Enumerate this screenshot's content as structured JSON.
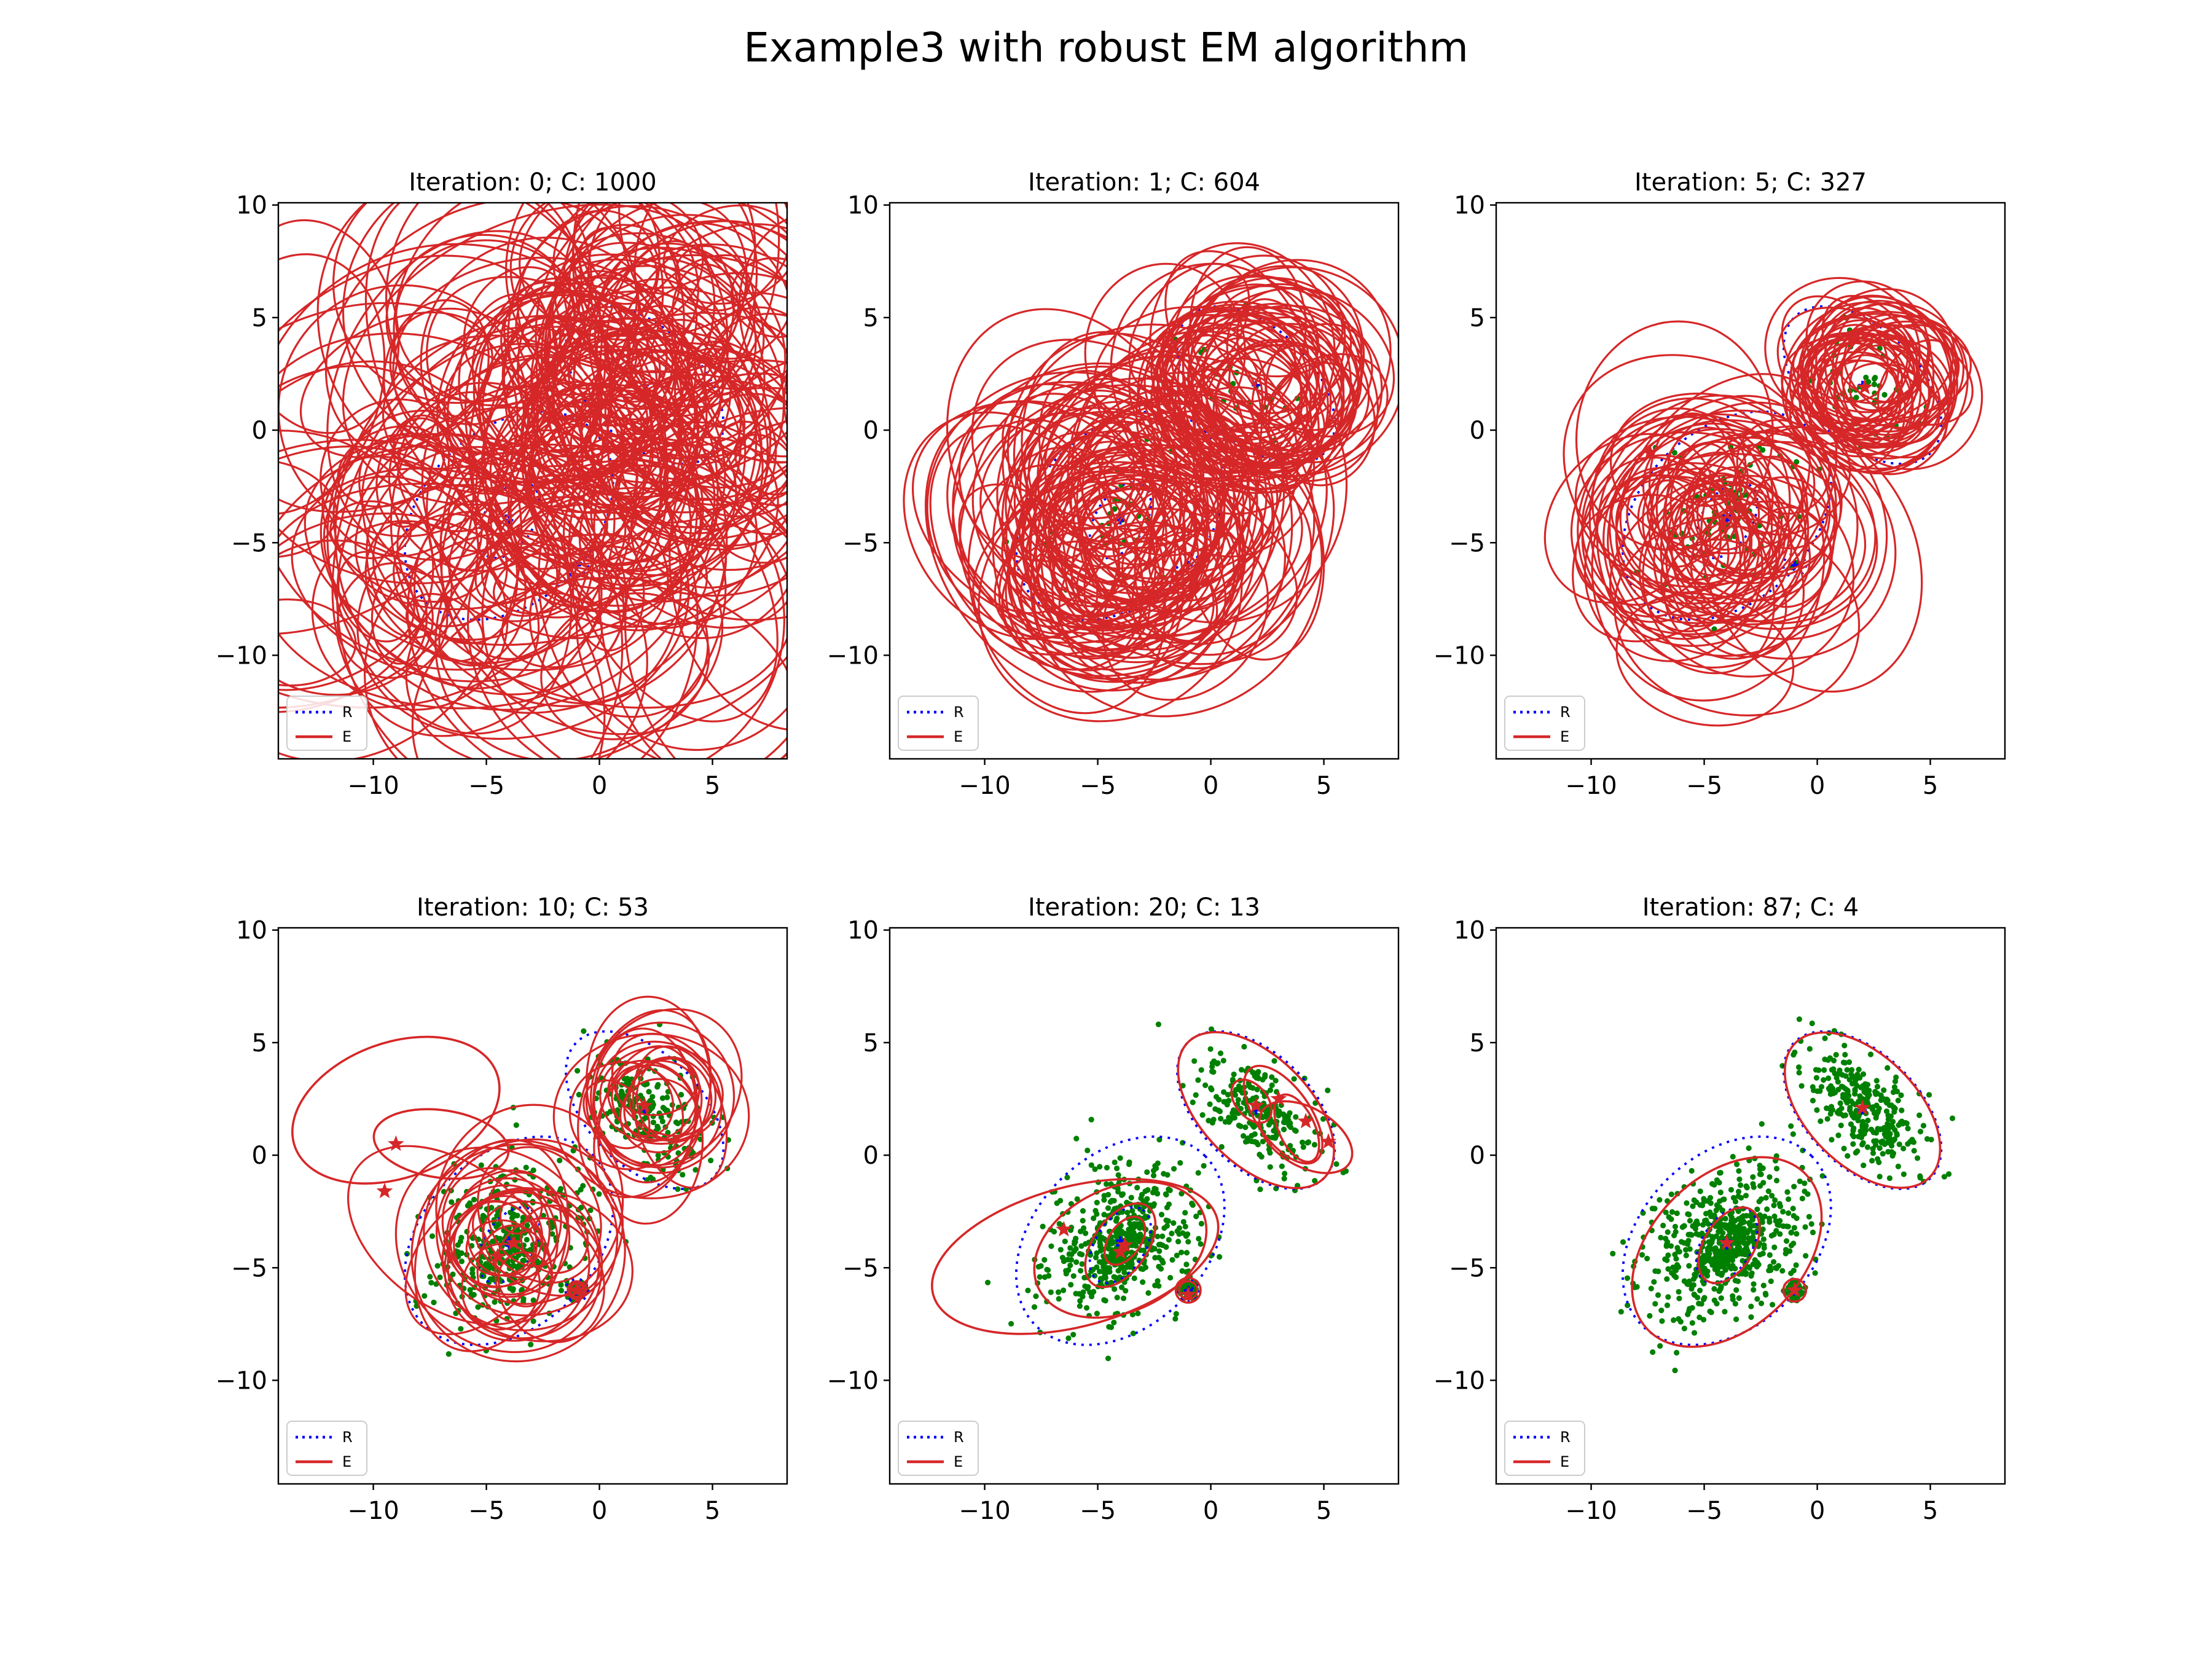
{
  "figure": {
    "title": "Example3 with robust EM algorithm"
  },
  "colors": {
    "estimate": "#d62728",
    "reference": "#0000ff",
    "points": "#008000",
    "axes": "#000000"
  },
  "legend": {
    "reference_label": "R",
    "estimate_label": "E",
    "placement": "lower-left"
  },
  "reference_components": [
    {
      "center": [
        -4.0,
        -3.8
      ],
      "axes": [
        10.6,
        7.6
      ],
      "angle": 45
    },
    {
      "center": [
        2.0,
        2.0
      ],
      "axes": [
        8.5,
        5.0
      ],
      "angle": -45
    },
    {
      "center": [
        -4.0,
        -4.0
      ],
      "axes": [
        3.7,
        2.2
      ],
      "angle": 58
    },
    {
      "center": [
        -1.0,
        -6.0
      ],
      "axes": [
        1.0,
        1.0
      ],
      "angle": 0
    }
  ],
  "chart_data": [
    {
      "type": "scatter",
      "title": "Iteration: 0; C: 1000",
      "iteration": 0,
      "components": 1000,
      "xlim": [
        -14.2,
        8.3
      ],
      "ylim": [
        -14.6,
        10.1
      ],
      "xticks": [
        -10,
        -5,
        0,
        5
      ],
      "yticks": [
        -10,
        -5,
        0,
        5,
        10
      ],
      "tick_labels": {
        "x": [
          "−10",
          "−5",
          "0",
          "5"
        ],
        "y": [
          "−10",
          "−5",
          "0",
          "5",
          "10"
        ]
      },
      "draw_estimates": 220,
      "est_groups": [
        {
          "c": [
            -4.0,
            -4.0
          ],
          "sx": 5.0,
          "sy": 4.0,
          "s": [
            1.5,
            9.5
          ],
          "frac": 0.55
        },
        {
          "c": [
            1.5,
            2.0
          ],
          "sx": 4.0,
          "sy": 3.0,
          "s": [
            1.5,
            7.5
          ],
          "frac": 0.45
        }
      ],
      "points": 0
    },
    {
      "type": "scatter",
      "title": "Iteration: 1; C: 604",
      "iteration": 1,
      "components": 604,
      "xlim": [
        -14.2,
        8.3
      ],
      "ylim": [
        -14.6,
        10.1
      ],
      "xticks": [
        -10,
        -5,
        0,
        5
      ],
      "yticks": [
        -10,
        -5,
        0,
        5,
        10
      ],
      "tick_labels": {
        "x": [
          "−10",
          "−5",
          "0",
          "5"
        ],
        "y": [
          "−10",
          "−5",
          "0",
          "5",
          "10"
        ]
      },
      "draw_estimates": 150,
      "est_groups": [
        {
          "c": [
            -4.0,
            -4.2
          ],
          "sx": 2.2,
          "sy": 2.2,
          "s": [
            2.5,
            7.0
          ],
          "frac": 0.6
        },
        {
          "c": [
            2.3,
            2.3
          ],
          "sx": 1.2,
          "sy": 1.2,
          "s": [
            2.5,
            5.0
          ],
          "frac": 0.4
        }
      ],
      "points": 60
    },
    {
      "type": "scatter",
      "title": "Iteration: 5; C: 327",
      "iteration": 5,
      "components": 327,
      "xlim": [
        -14.2,
        8.3
      ],
      "ylim": [
        -14.6,
        10.1
      ],
      "xticks": [
        -10,
        -5,
        0,
        5
      ],
      "yticks": [
        -10,
        -5,
        0,
        5,
        10
      ],
      "tick_labels": {
        "x": [
          "−10",
          "−5",
          "0",
          "5"
        ],
        "y": [
          "−10",
          "−5",
          "0",
          "5",
          "10"
        ]
      },
      "draw_estimates": 110,
      "est_groups": [
        {
          "c": [
            -4.2,
            -4.4
          ],
          "sx": 1.6,
          "sy": 1.6,
          "s": [
            1.5,
            6.5
          ],
          "frac": 0.6
        },
        {
          "c": [
            2.4,
            2.3
          ],
          "sx": 0.8,
          "sy": 0.8,
          "s": [
            2.0,
            4.0
          ],
          "frac": 0.4
        }
      ],
      "stars": [
        [
          -7.4,
          -1.0
        ],
        [
          -4.2,
          -4.2
        ],
        [
          2.1,
          1.9
        ]
      ],
      "points": 120
    },
    {
      "type": "scatter",
      "title": "Iteration: 10; C: 53",
      "iteration": 10,
      "components": 53,
      "xlim": [
        -14.2,
        8.3
      ],
      "ylim": [
        -14.6,
        10.1
      ],
      "xticks": [
        -10,
        -5,
        0,
        5
      ],
      "yticks": [
        -10,
        -5,
        0,
        5,
        10
      ],
      "tick_labels": {
        "x": [
          "−10",
          "−5",
          "0",
          "5"
        ],
        "y": [
          "−10",
          "−5",
          "0",
          "5",
          "10"
        ]
      },
      "draw_estimates": 48,
      "est_groups": [
        {
          "c": [
            -3.8,
            -4.0
          ],
          "sx": 1.0,
          "sy": 1.0,
          "s": [
            1.0,
            5.5
          ],
          "frac": 0.55
        },
        {
          "c": [
            2.3,
            2.2
          ],
          "sx": 0.6,
          "sy": 0.6,
          "s": [
            1.5,
            4.5
          ],
          "frac": 0.45
        }
      ],
      "extra_ellipses": [
        {
          "c": [
            -9.0,
            2.0
          ],
          "axes": [
            9.5,
            6.0
          ],
          "angle": 20
        },
        {
          "c": [
            -7.0,
            0.5
          ],
          "axes": [
            6.0,
            3.0
          ],
          "angle": -8
        },
        {
          "c": [
            -1.0,
            -6.0
          ],
          "axes": [
            0.8,
            0.8
          ],
          "angle": 0
        },
        {
          "c": [
            -1.0,
            -6.0
          ],
          "axes": [
            0.6,
            0.6
          ],
          "angle": 0
        }
      ],
      "stars": [
        [
          -9.0,
          0.5
        ],
        [
          -9.5,
          -1.6
        ],
        [
          -3.8,
          -3.9
        ],
        [
          -1.0,
          -6.0
        ],
        [
          2.0,
          2.2
        ],
        [
          -4.5,
          -4.5
        ]
      ],
      "points": 650
    },
    {
      "type": "scatter",
      "title": "Iteration: 20; C: 13",
      "iteration": 20,
      "components": 13,
      "xlim": [
        -14.2,
        8.3
      ],
      "ylim": [
        -14.6,
        10.1
      ],
      "xticks": [
        -10,
        -5,
        0,
        5
      ],
      "yticks": [
        -10,
        -5,
        0,
        5,
        10
      ],
      "tick_labels": {
        "x": [
          "−10",
          "−5",
          "0",
          "5"
        ],
        "y": [
          "−10",
          "−5",
          "0",
          "5",
          "10"
        ]
      },
      "draw_estimates": 0,
      "extra_ellipses": [
        {
          "c": [
            -6.0,
            -4.5
          ],
          "axes": [
            13.0,
            6.2
          ],
          "angle": 15
        },
        {
          "c": [
            -4.0,
            -4.2
          ],
          "axes": [
            8.0,
            5.5
          ],
          "angle": 25
        },
        {
          "c": [
            -4.0,
            -4.0
          ],
          "axes": [
            4.2,
            2.4
          ],
          "angle": 55
        },
        {
          "c": [
            -3.8,
            -3.8
          ],
          "axes": [
            2.4,
            1.4
          ],
          "angle": 55
        },
        {
          "c": [
            -1.0,
            -6.0
          ],
          "axes": [
            1.1,
            1.1
          ],
          "angle": 0
        },
        {
          "c": [
            -1.0,
            -6.0
          ],
          "axes": [
            0.8,
            0.8
          ],
          "angle": 0
        },
        {
          "c": [
            2.0,
            2.0
          ],
          "axes": [
            8.5,
            4.8
          ],
          "angle": -45
        },
        {
          "c": [
            3.2,
            1.8
          ],
          "axes": [
            5.0,
            2.4
          ],
          "angle": -55
        },
        {
          "c": [
            4.2,
            0.8
          ],
          "axes": [
            4.5,
            2.6
          ],
          "angle": -30
        },
        {
          "c": [
            3.8,
            1.2
          ],
          "axes": [
            3.2,
            1.6
          ],
          "angle": -65
        },
        {
          "c": [
            1.8,
            2.4
          ],
          "axes": [
            2.2,
            1.4
          ],
          "angle": -50
        }
      ],
      "stars": [
        [
          -6.5,
          -3.3
        ],
        [
          -3.8,
          -4.0
        ],
        [
          -4.0,
          -4.3
        ],
        [
          -1.0,
          -6.2
        ],
        [
          2.0,
          2.2
        ],
        [
          4.2,
          1.5
        ],
        [
          5.2,
          0.6
        ],
        [
          3.0,
          2.5
        ]
      ],
      "points": 850
    },
    {
      "type": "scatter",
      "title": "Iteration: 87; C: 4",
      "iteration": 87,
      "components": 4,
      "xlim": [
        -14.2,
        8.3
      ],
      "ylim": [
        -14.6,
        10.1
      ],
      "xticks": [
        -10,
        -5,
        0,
        5
      ],
      "yticks": [
        -10,
        -5,
        0,
        5,
        10
      ],
      "tick_labels": {
        "x": [
          "−10",
          "−5",
          "0",
          "5"
        ],
        "y": [
          "−10",
          "−5",
          "0",
          "5",
          "10"
        ]
      },
      "draw_estimates": 0,
      "extra_ellipses": [
        {
          "c": [
            -4.0,
            -4.3
          ],
          "axes": [
            9.8,
            6.7
          ],
          "angle": 45
        },
        {
          "c": [
            2.0,
            2.0
          ],
          "axes": [
            8.4,
            4.9
          ],
          "angle": -45
        },
        {
          "c": [
            -3.9,
            -4.0
          ],
          "axes": [
            3.7,
            2.2
          ],
          "angle": 58
        },
        {
          "c": [
            -1.0,
            -6.0
          ],
          "axes": [
            1.0,
            1.0
          ],
          "angle": 0
        }
      ],
      "stars": [
        [
          -4.0,
          -3.9
        ],
        [
          2.0,
          2.1
        ],
        [
          -1.0,
          -6.0
        ]
      ],
      "points": 1000
    }
  ]
}
